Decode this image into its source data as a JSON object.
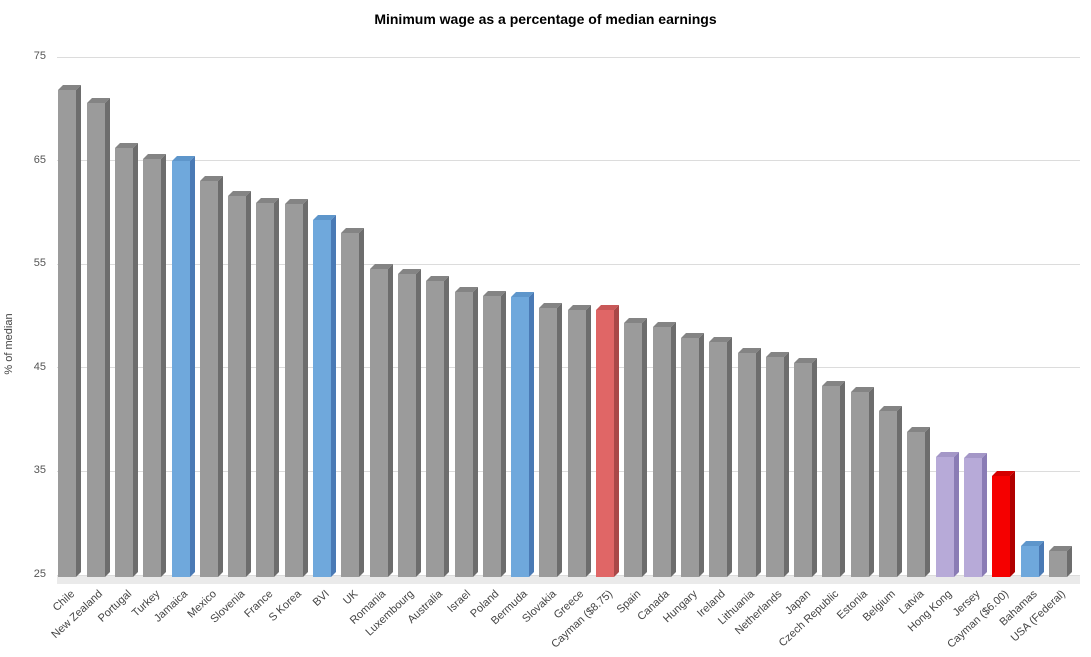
{
  "chart_data": {
    "type": "bar",
    "style": "3d-column",
    "title": "Minimum wage as a percentage of median earnings",
    "xlabel": "",
    "ylabel": "% of median",
    "ylim": [
      25,
      75
    ],
    "yticks": [
      25,
      35,
      45,
      55,
      65,
      75
    ],
    "grid": true,
    "legend_position": "none",
    "categories": [
      "Chile",
      "New Zealand",
      "Portugal",
      "Turkey",
      "Jamaica",
      "Mexico",
      "Slovenia",
      "France",
      "S Korea",
      "BVI",
      "UK",
      "Romania",
      "Luxembourg",
      "Australia",
      "Israel",
      "Poland",
      "Bermuda",
      "Slovakia",
      "Greece",
      "Cayman ($8.75)",
      "Spain",
      "Canada",
      "Hungary",
      "Ireland",
      "Lithuania",
      "Netherlands",
      "Japan",
      "Czech Republic",
      "Estonia",
      "Belgium",
      "Latvia",
      "Hong Kong",
      "Jersey",
      "Cayman ($6.00)",
      "Bahamas",
      "USA (Federal)"
    ],
    "values": [
      71.8,
      70.6,
      66.2,
      65.2,
      65.0,
      63.0,
      61.6,
      60.9,
      60.8,
      59.3,
      58.0,
      54.5,
      54.1,
      53.4,
      52.3,
      51.9,
      51.8,
      50.8,
      50.6,
      50.6,
      49.3,
      48.9,
      47.9,
      47.5,
      46.4,
      46.0,
      45.5,
      43.2,
      42.7,
      40.8,
      38.8,
      36.4,
      36.3,
      34.6,
      27.8,
      27.3
    ],
    "colors": [
      "gray",
      "gray",
      "gray",
      "gray",
      "blue",
      "gray",
      "gray",
      "gray",
      "gray",
      "blue",
      "gray",
      "gray",
      "gray",
      "gray",
      "gray",
      "gray",
      "blue",
      "gray",
      "gray",
      "salmon",
      "gray",
      "gray",
      "gray",
      "gray",
      "gray",
      "gray",
      "gray",
      "gray",
      "gray",
      "gray",
      "gray",
      "purple",
      "purple",
      "red",
      "blue",
      "gray"
    ],
    "palette": {
      "gray": {
        "front": "#9b9b9b",
        "top": "#848484",
        "side": "#6d6d6d"
      },
      "blue": {
        "front": "#6fa8dc",
        "top": "#5e96cb",
        "side": "#4a7ab5"
      },
      "purple": {
        "front": "#b7aad8",
        "top": "#a497c7",
        "side": "#8a7cb5"
      },
      "salmon": {
        "front": "#e06666",
        "top": "#c95858",
        "side": "#a94848"
      },
      "red": {
        "front": "#f50000",
        "top": "#d40000",
        "side": "#b00000"
      }
    },
    "title_color": "#000000",
    "axis_tick_color": "#555555",
    "label_color": "#444444",
    "gridline_color": "#dcdcdc",
    "floor_color": "#eaeaea",
    "background_color": "#ffffff"
  }
}
